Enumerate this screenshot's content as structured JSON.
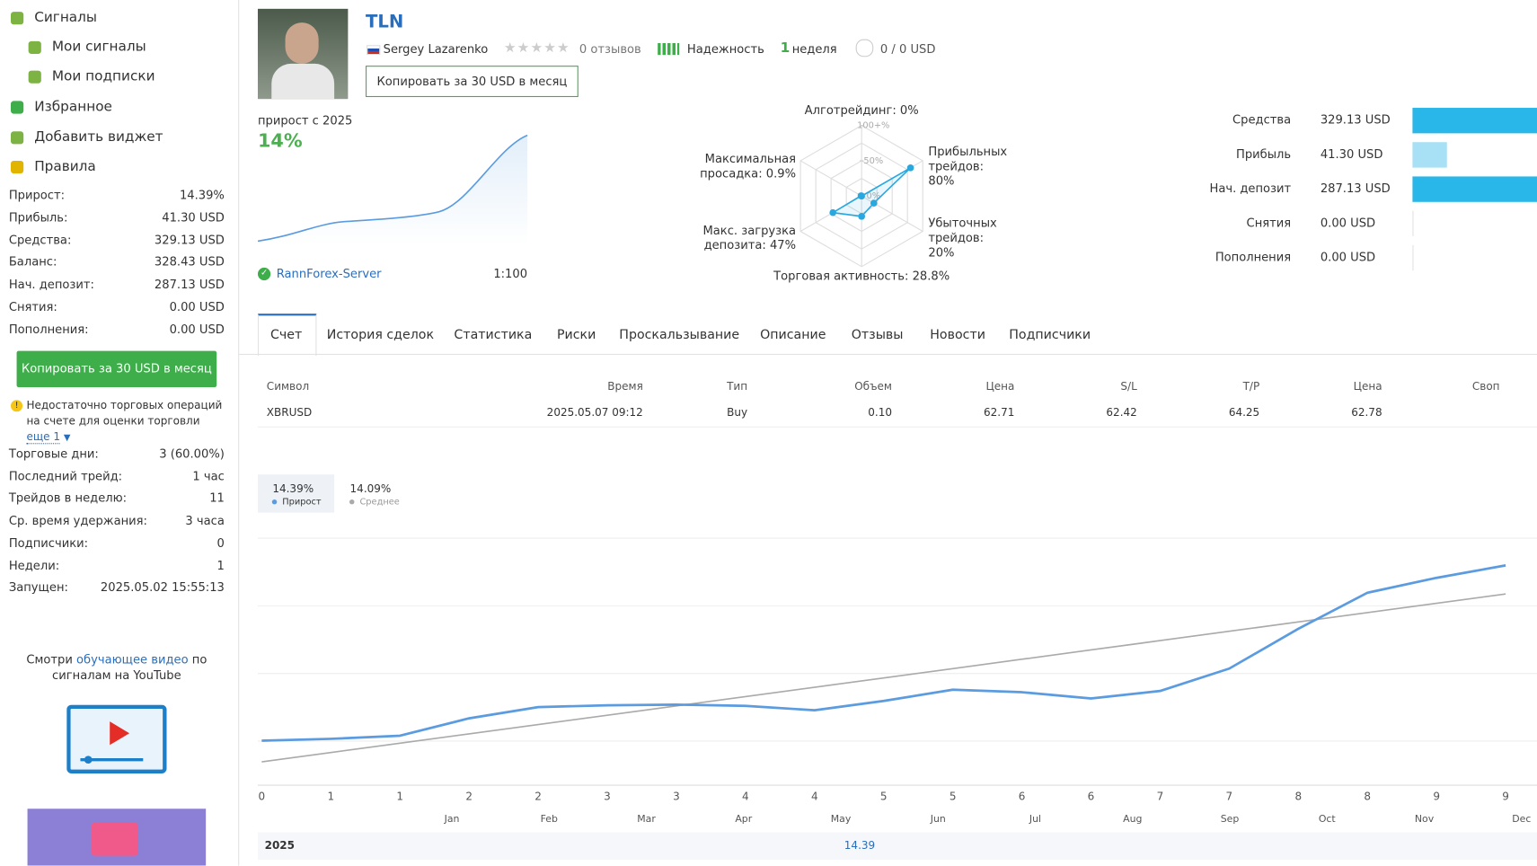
{
  "sidebar": {
    "nav": [
      "Сигналы",
      "Мои сигналы",
      "Мои подписки",
      "Избранное",
      "Добавить виджет",
      "Правила"
    ],
    "stats": [
      [
        "Прирост:",
        "14.39%"
      ],
      [
        "Прибыль:",
        "41.30 USD"
      ],
      [
        "Средства:",
        "329.13 USD"
      ],
      [
        "Баланс:",
        "328.43 USD"
      ],
      [
        "Нач. депозит:",
        "287.13 USD"
      ],
      [
        "Снятия:",
        "0.00 USD"
      ],
      [
        "Пополнения:",
        "0.00 USD"
      ]
    ],
    "copy_button": "Копировать за 30 USD в месяц",
    "warning": "Недостаточно торговых операций на счете для оценки торговли",
    "warning_more": "еще 1",
    "stats2": [
      [
        "Торговые дни:",
        "3 (60.00%)"
      ],
      [
        "Последний трейд:",
        "1 час"
      ],
      [
        "Трейдов в неделю:",
        "11"
      ],
      [
        "Ср. время удержания:",
        "3 часа"
      ],
      [
        "Подписчики:",
        "0"
      ],
      [
        "Недели:",
        "1"
      ],
      [
        "Запущен:",
        "2025.05.02 15:55:13"
      ]
    ],
    "video_text": [
      "Смотри",
      "обучающее видео",
      "по сигналам на YouTube"
    ]
  },
  "header": {
    "title": "TLN",
    "author": "Sergey Lazarenko",
    "reviews": "0 отзывов",
    "reliability": "Надежность",
    "weeks_count": "1",
    "weeks_label": "неделя",
    "subscribers": "0 / 0 USD",
    "copy_button": "Копировать за 30 USD в месяц"
  },
  "growth": {
    "label": "прирост с 2025",
    "value": "14%",
    "server": "RannForex-Server",
    "leverage": "1:100"
  },
  "tabs": [
    "Счет",
    "История сделок",
    "Статистика",
    "Риски",
    "Проскальзывание",
    "Описание",
    "Отзывы",
    "Новости",
    "Подписчики"
  ],
  "table": {
    "header": [
      "Символ",
      "Время",
      "Тип",
      "Объем",
      "Цена",
      "S/L",
      "T/P",
      "Цена",
      "Своп"
    ],
    "rows": [
      [
        "XBRUSD",
        "2025.05.07 09:12",
        "Buy",
        "0.10",
        "62.71",
        "62.42",
        "64.25",
        "62.78"
      ]
    ]
  },
  "chart_data": [
    {
      "type": "radar",
      "axes": [
        "Алготрейдинг: 0%",
        "Прибыльных трейдов: 80%",
        "Убыточных трейдов: 20%",
        "Торговая активность: 28.8%",
        "Макс. загрузка депозита: 47%",
        "Максимальная просадка: 0.9%"
      ],
      "values": [
        0,
        80,
        20,
        28.8,
        47,
        0.9
      ],
      "color": "#29a8e0",
      "rlim": [
        0,
        100
      ],
      "rticks": [
        {
          "value": 0,
          "label": "0%"
        },
        {
          "value": 50,
          "label": "50%"
        },
        {
          "value": 100,
          "label": "100+%"
        }
      ]
    },
    {
      "type": "hbar",
      "categories": [
        "Средства",
        "Прибыль",
        "Нач. депозит",
        "Снятия",
        "Пополнения"
      ],
      "values": [
        329.13,
        41.3,
        287.13,
        0,
        0
      ],
      "value_labels": [
        "329.13 USD",
        "41.30 USD",
        "287.13 USD",
        "0.00 USD",
        "0.00 USD"
      ],
      "colors": [
        "#29b6e8",
        "#a8e0f5",
        "#29b6e8",
        "#29b6e8",
        "#29b6e8"
      ],
      "xlim": [
        0,
        400
      ]
    },
    {
      "type": "line",
      "categories": [
        0,
        1,
        1,
        2,
        2,
        3,
        3,
        4,
        4,
        5,
        5,
        6,
        6,
        7,
        7,
        8,
        8,
        9,
        9
      ],
      "months": [
        "Jan",
        "Feb",
        "Mar",
        "Apr",
        "May",
        "Jun",
        "Jul",
        "Aug",
        "Sep",
        "Oct",
        "Nov",
        "Dec"
      ],
      "series": [
        {
          "name": "Прирост",
          "total": "14.39%",
          "color": "#5b9be0",
          "values": [
            0,
            0.15,
            0.4,
            1.8,
            2.7,
            2.85,
            2.9,
            2.8,
            2.45,
            3.2,
            4.1,
            3.9,
            3.4,
            4.0,
            5.8,
            9.0,
            11.9,
            13.1,
            14.1
          ]
        },
        {
          "name": "Среднее",
          "total": "14.09%",
          "color": "#aaaaaa",
          "values": [
            -1.7,
            -0.95,
            -0.2,
            0.55,
            1.3,
            2.05,
            2.8,
            3.55,
            4.3,
            5.05,
            5.8,
            6.55,
            7.3,
            8.05,
            8.8,
            9.55,
            10.3,
            11.05,
            11.8
          ]
        }
      ],
      "ylim": [
        -3.5,
        17
      ],
      "footer": {
        "year": "2025",
        "value": "14.39"
      }
    }
  ]
}
